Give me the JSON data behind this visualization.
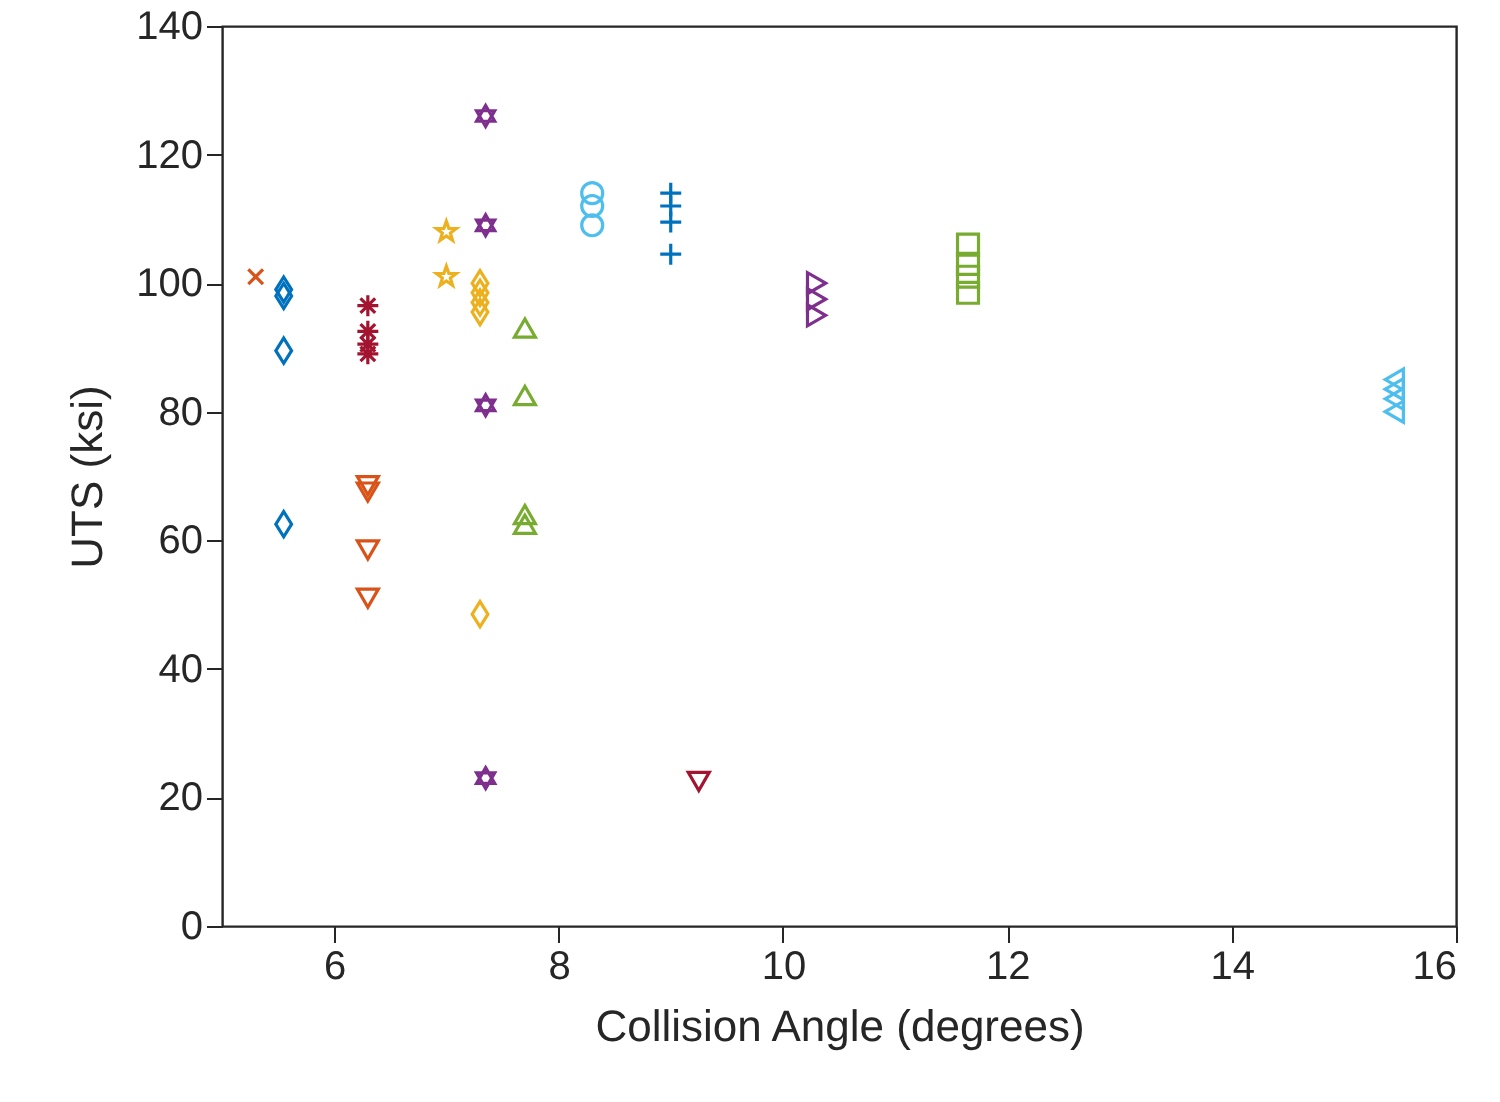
{
  "chart_data": {
    "type": "scatter",
    "xlabel": "Collision Angle (degrees)",
    "ylabel": "UTS (ksi)",
    "xlim": [
      5,
      16
    ],
    "xticks": [
      6,
      8,
      10,
      12,
      14,
      16
    ],
    "ylim": [
      0,
      140
    ],
    "yticks": [
      0,
      20,
      40,
      60,
      80,
      100,
      120,
      140
    ],
    "grid": false,
    "legend": false,
    "series": [
      {
        "color": "#d95319",
        "marker": "x",
        "x": [
          5.3
        ],
        "values": [
          101
        ]
      },
      {
        "color": "#0072bd",
        "marker": "diamond",
        "x": [
          5.55,
          5.55,
          5.55,
          5.55
        ],
        "values": [
          99,
          98,
          89.5,
          62.5
        ]
      },
      {
        "color": "#a2142f",
        "marker": "cross",
        "x": [
          6.3,
          6.3,
          6.3,
          6.3
        ],
        "values": [
          96.5,
          92.5,
          90.5,
          89
        ]
      },
      {
        "color": "#d95319",
        "marker": "triangle-down",
        "x": [
          6.3,
          6.3,
          6.3,
          6.3
        ],
        "values": [
          68.5,
          67.5,
          58.5,
          51
        ]
      },
      {
        "color": "#edb120",
        "marker": "star",
        "x": [
          7.0,
          7.0
        ],
        "values": [
          108,
          101
        ]
      },
      {
        "color": "#edb120",
        "marker": "diamond",
        "x": [
          7.3,
          7.3,
          7.3,
          7.3,
          7.3
        ],
        "values": [
          100,
          98.5,
          97,
          95.5,
          48.5
        ]
      },
      {
        "color": "#7e2f8e",
        "marker": "star",
        "x": [
          7.35,
          7.35,
          7.35,
          7.35
        ],
        "values": [
          126,
          109,
          81,
          23
        ]
      },
      {
        "color": "#77ac30",
        "marker": "triangle",
        "x": [
          7.7,
          7.7,
          7.7,
          7.7
        ],
        "values": [
          93,
          82.5,
          64,
          62.5
        ]
      },
      {
        "color": "#4dbeee",
        "marker": "circle",
        "x": [
          8.3,
          8.3,
          8.3
        ],
        "values": [
          114,
          112,
          109
        ]
      },
      {
        "color": "#0072bd",
        "marker": "plus",
        "x": [
          9.0,
          9.0,
          9.0,
          9.0
        ],
        "values": [
          114,
          112,
          109.5,
          104.5
        ]
      },
      {
        "color": "#a2142f",
        "marker": "triangle-down",
        "x": [
          9.25
        ],
        "values": [
          22.5
        ]
      },
      {
        "color": "#7e2f8e",
        "marker": "triangle-right",
        "x": [
          10.3,
          10.3,
          10.3
        ],
        "values": [
          100,
          97.5,
          95
        ]
      },
      {
        "color": "#77ac30",
        "marker": "square",
        "x": [
          11.65,
          11.65,
          11.65,
          11.65
        ],
        "values": [
          106,
          103,
          101,
          98.5
        ]
      },
      {
        "color": "#4dbeee",
        "marker": "triangle-left",
        "x": [
          15.45,
          15.45,
          15.45,
          15.45
        ],
        "values": [
          85,
          83.5,
          82,
          80
        ]
      }
    ]
  }
}
